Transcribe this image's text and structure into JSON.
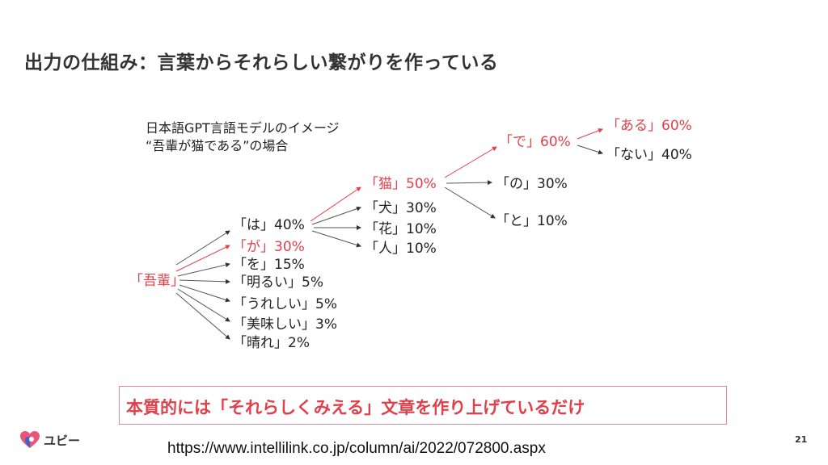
{
  "slide": {
    "title": "出力の仕組み：言葉からそれらしい繋がりを作っている",
    "caption_line1": "日本語GPT言語モデルのイメージ",
    "caption_line2": "“吾輩が猫である”の場合",
    "summary": "本質的には「それらしくみえる」文章を作り上げているだけ",
    "source_url": "https://www.intellilink.co.jp/column/ai/2022/072800.aspx",
    "page_number": "21",
    "logo_text": "ユビー"
  },
  "tree": {
    "root": "「吾輩」",
    "level1": [
      "「は」40%",
      "「が」30%",
      "「を」15%",
      "「明るい」5%",
      "「うれしい」5%",
      "「美味しい」3%",
      "「晴れ」2%"
    ],
    "level2": [
      "「猫」50%",
      "「犬」30%",
      "「花」10%",
      "「人」10%"
    ],
    "level3": [
      "「で」60%",
      "「の」30%",
      "「と」10%"
    ],
    "level4": [
      "「ある」60%",
      "「ない」40%"
    ]
  },
  "colors": {
    "highlight": "#e0404a",
    "text": "#222222",
    "box_border": "#e58a94",
    "logo_pink": "#e8547a",
    "logo_blue": "#3e63c9"
  }
}
